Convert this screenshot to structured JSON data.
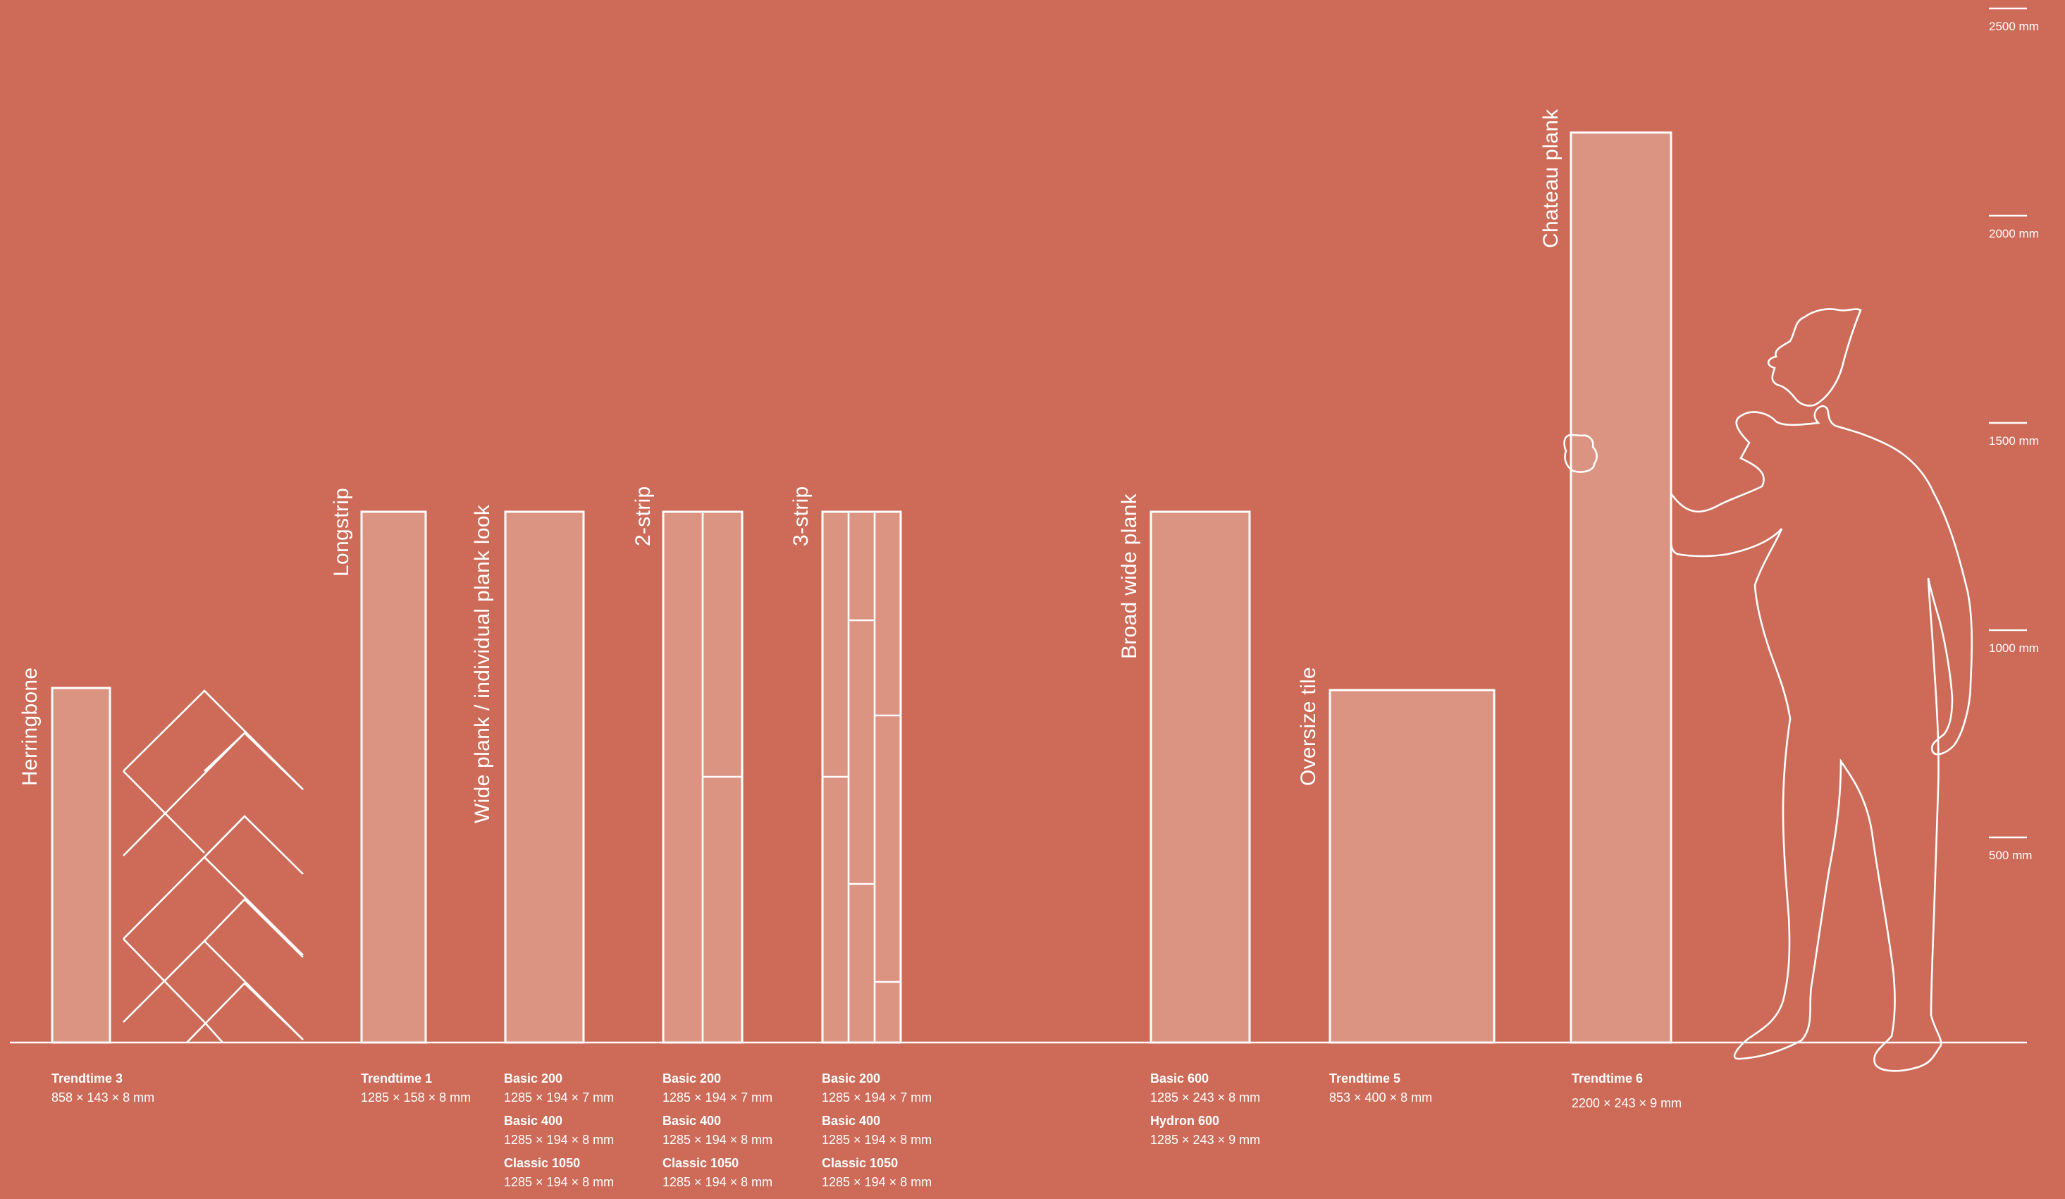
{
  "scale": {
    "ticks": [
      "2500 mm",
      "2000 mm",
      "1500 mm",
      "1000 mm",
      "500 mm"
    ]
  },
  "categories": [
    {
      "id": "herringbone",
      "label": "Herringbone"
    },
    {
      "id": "longstrip",
      "label": "Longstrip"
    },
    {
      "id": "wideplank",
      "label": "Wide plank / individual plank look"
    },
    {
      "id": "twostrip",
      "label": "2-strip"
    },
    {
      "id": "threestrip",
      "label": "3-strip"
    },
    {
      "id": "broadwide",
      "label": "Broad wide plank"
    },
    {
      "id": "oversize",
      "label": "Oversize tile"
    },
    {
      "id": "chateau",
      "label": "Chateau plank"
    }
  ],
  "products": [
    {
      "entries": [
        {
          "name": "Trendtime 3",
          "dims": "858 × 143 × 8 mm"
        }
      ]
    },
    {
      "entries": [
        {
          "name": "Trendtime 1",
          "dims": "1285 × 158 × 8 mm"
        }
      ]
    },
    {
      "entries": [
        {
          "name": "Basic 200",
          "dims": "1285 × 194 × 7 mm"
        },
        {
          "name": "Basic 400",
          "dims": "1285 × 194 × 8 mm"
        },
        {
          "name": "Classic 1050",
          "dims": "1285 × 194 × 8 mm"
        }
      ]
    },
    {
      "entries": [
        {
          "name": "Basic 200",
          "dims": "1285 × 194 × 7 mm"
        },
        {
          "name": "Basic 400",
          "dims": "1285 × 194 × 8 mm"
        },
        {
          "name": "Classic 1050",
          "dims": "1285 × 194 × 8 mm"
        }
      ]
    },
    {
      "entries": [
        {
          "name": "Basic 200",
          "dims": "1285 × 194 × 7 mm"
        },
        {
          "name": "Basic 400",
          "dims": "1285 × 194 × 8 mm"
        },
        {
          "name": "Classic 1050",
          "dims": "1285 × 194 × 8 mm"
        }
      ]
    },
    {
      "entries": [
        {
          "name": "Basic 600",
          "dims": "1285 × 243 × 8 mm"
        },
        {
          "name": "Hydron 600",
          "dims": "1285 × 243 × 9 mm"
        }
      ]
    },
    {
      "entries": [
        {
          "name": "Trendtime 5",
          "dims": "853 × 400 × 8 mm"
        }
      ]
    },
    {
      "entries": [
        {
          "name": "Trendtime 6",
          "dims": "2200 × 243 × 9 mm"
        }
      ]
    }
  ],
  "colors": {
    "background": "#CD6B58",
    "panel_fill": "#DC9482",
    "line": "#FFFFFF"
  }
}
